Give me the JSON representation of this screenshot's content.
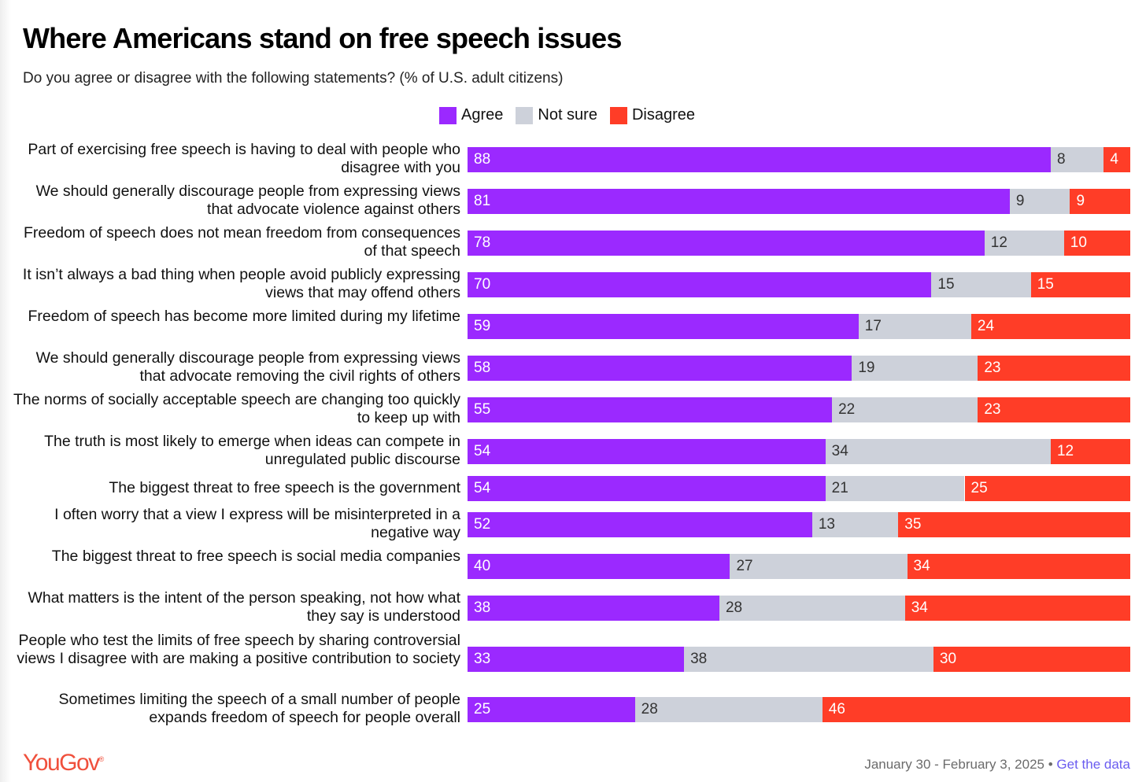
{
  "chart_data": {
    "type": "bar",
    "orientation": "horizontal-stacked",
    "title": "Where Americans stand on free speech issues",
    "subtitle": "Do you agree or disagree with the following statements? (% of U.S. adult citizens)",
    "legend": [
      "Agree",
      "Not sure",
      "Disagree"
    ],
    "legend_placement": "top-center",
    "colors": {
      "Agree": "#9b29ff",
      "Not sure": "#cdd1da",
      "Disagree": "#ff3d27"
    },
    "categories": [
      "Part of exercising free speech is having to deal with people who disagree with you",
      "We should generally discourage people from expressing views that advocate violence against others",
      "Freedom of speech does not mean freedom from consequences of that speech",
      "It isn’t always a bad thing when people avoid publicly expressing views that may offend others",
      "Freedom of speech has become more limited during my lifetime",
      "We should generally discourage people from expressing views that advocate removing the civil rights of others",
      "The norms of socially acceptable speech are changing too quickly to keep up with",
      "The truth is most likely to emerge when ideas can compete in unregulated public discourse",
      "The biggest threat to free speech is the government",
      "I often worry that a view I express will be misinterpreted in a negative way",
      "The biggest threat to free speech is social media companies",
      "What matters is the intent of the person speaking, not how what they say is understood",
      "People who test the limits of free speech by sharing controversial views I disagree with are making a positive contribution to society",
      "Sometimes limiting the speech of a small number of people expands freedom of speech for people overall"
    ],
    "series": [
      {
        "name": "Agree",
        "values": [
          88,
          81,
          78,
          70,
          59,
          58,
          55,
          54,
          54,
          52,
          40,
          38,
          33,
          25
        ]
      },
      {
        "name": "Not sure",
        "values": [
          8,
          9,
          12,
          15,
          17,
          19,
          22,
          34,
          21,
          13,
          27,
          28,
          38,
          28
        ]
      },
      {
        "name": "Disagree",
        "values": [
          4,
          9,
          10,
          15,
          24,
          23,
          23,
          12,
          25,
          35,
          34,
          34,
          30,
          46
        ]
      }
    ],
    "xlim": [
      0,
      100
    ]
  },
  "footer": {
    "logo": "YouGov",
    "date": "January 30 - February 3, 2025",
    "separator": "•",
    "link": "Get the data"
  }
}
